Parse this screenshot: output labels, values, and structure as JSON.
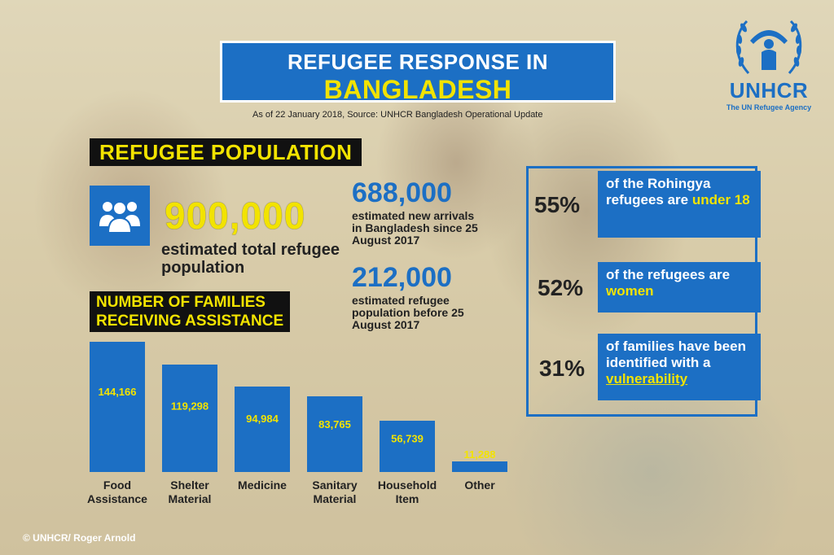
{
  "header": {
    "title_line1": "REFUGEE RESPONSE IN",
    "title_line2": "BANGLADESH",
    "source": "As of 22 January 2018, Source: UNHCR Bangladesh Operational Update"
  },
  "logo": {
    "name": "UNHCR",
    "tagline": "The UN Refugee Agency",
    "icon": "unhcr-emblem-icon"
  },
  "population": {
    "section_title": "REFUGEE POPULATION",
    "icon": "people-group-icon",
    "total": "900,000",
    "total_label": "estimated total refugee population",
    "new_arrivals": "688,000",
    "new_arrivals_label": "estimated new arrivals in Bangladesh since 25 August 2017",
    "before": "212,000",
    "before_label": "estimated refugee population before 25 August 2017"
  },
  "facts": [
    {
      "pct": "55%",
      "text": "of the Rohingya refugees are",
      "highlight": "under 18"
    },
    {
      "pct": "52%",
      "text": "of the refugees are",
      "highlight": "women"
    },
    {
      "pct": "31%",
      "text": "of families have been identified with a",
      "highlight": "vulnerability"
    }
  ],
  "families": {
    "section_title_line1": "NUMBER OF FAMILIES",
    "section_title_line2": "RECEIVING ASSISTANCE"
  },
  "chart_data": {
    "type": "bar",
    "title": "NUMBER OF FAMILIES RECEIVING ASSISTANCE",
    "categories": [
      "Food Assistance",
      "Shelter Material",
      "Medicine",
      "Sanitary Material",
      "Household Item",
      "Other"
    ],
    "category_lines": [
      [
        "Food",
        "Assistance"
      ],
      [
        "Shelter",
        "Material"
      ],
      [
        "Medicine"
      ],
      [
        "Sanitary",
        "Material"
      ],
      [
        "Household",
        "Item"
      ],
      [
        "Other"
      ]
    ],
    "values": [
      144166,
      119298,
      94984,
      83765,
      56739,
      11288
    ],
    "value_labels": [
      "144,166",
      "119,298",
      "94,984",
      "83,765",
      "56,739",
      "11,288"
    ],
    "colors": {
      "bar": "#1c6fc4",
      "label": "#f2e300",
      "category": "#222222"
    },
    "grid": false,
    "legend": "none"
  },
  "credit": "© UNHCR/ Roger Arnold",
  "colors": {
    "accent": "#1c6fc4",
    "highlight": "#f2e300",
    "dark": "#111111"
  }
}
